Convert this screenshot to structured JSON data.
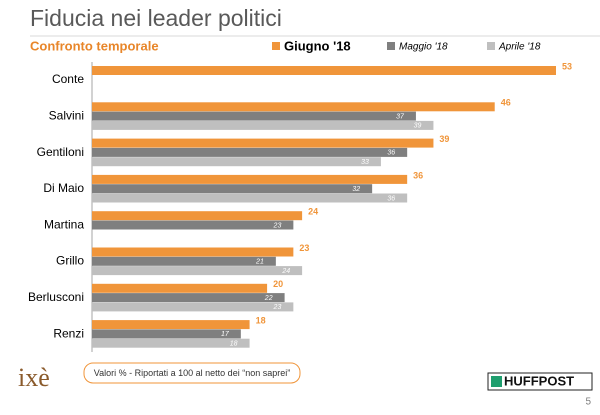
{
  "chart_data": {
    "type": "bar",
    "orientation": "horizontal",
    "title": "Fiducia nei leader politici",
    "subtitle": "Confronto temporale",
    "categories": [
      "Conte",
      "Salvini",
      "Gentiloni",
      "Di Maio",
      "Martina",
      "Grillo",
      "Berlusconi",
      "Renzi"
    ],
    "series": [
      {
        "name": "Giugno '18",
        "color": "#f0953a",
        "values": [
          53,
          46,
          39,
          36,
          24,
          23,
          20,
          18
        ]
      },
      {
        "name": "Maggio '18",
        "color": "#7f7f7f",
        "values": [
          null,
          37,
          36,
          32,
          23,
          21,
          22,
          17
        ]
      },
      {
        "name": "Aprile '18",
        "color": "#bfbfbf",
        "values": [
          null,
          39,
          33,
          36,
          null,
          24,
          23,
          18
        ]
      }
    ],
    "legend_position": "top",
    "note": "Valori % - Riportati a 100 al netto dei “non saprei”"
  },
  "branding": {
    "logo": "ixè",
    "source": "HUFFPOST",
    "page": "5"
  }
}
